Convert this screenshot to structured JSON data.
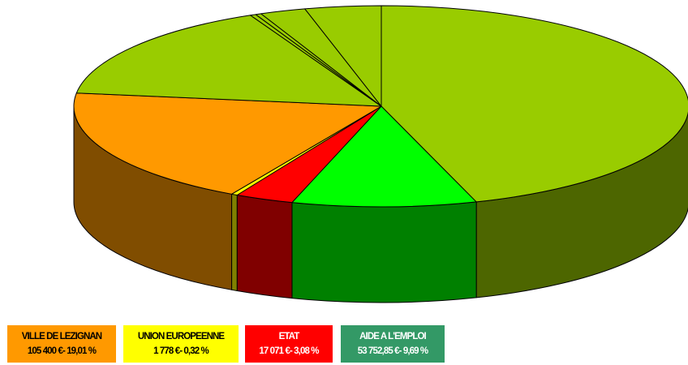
{
  "chart_data": {
    "type": "pie",
    "style": "3d",
    "slices": [
      {
        "label": "",
        "value": 45.0,
        "color": "#99CC00",
        "side_color": "#4D6600"
      },
      {
        "label": "AIDE A L'EMPLOI",
        "amount": "53 752,85 €",
        "value": 9.69,
        "color": "#00FF00",
        "side_color": "#008000"
      },
      {
        "label": "ETAT",
        "amount": "17 071 €",
        "value": 3.08,
        "color": "#FF0000",
        "side_color": "#800000"
      },
      {
        "label": "UNION EUROPEENNE",
        "amount": "1 778 €",
        "value": 0.32,
        "color": "#FFFF00",
        "side_color": "#808000"
      },
      {
        "label": "VILLE DE LEZIGNAN",
        "amount": "105 400 €",
        "value": 19.01,
        "color": "#FF9900",
        "side_color": "#804D00"
      },
      {
        "label": "",
        "value": 15.9,
        "color": "#99CC00",
        "side_color": "#4D6600"
      },
      {
        "label": "",
        "value": 0.3,
        "color": "#99CC00",
        "side_color": "#4D6600"
      },
      {
        "label": "",
        "value": 0.3,
        "color": "#99CC00",
        "side_color": "#4D6600"
      },
      {
        "label": "",
        "value": 2.4,
        "color": "#99CC00",
        "side_color": "#4D6600"
      },
      {
        "label": "",
        "value": 4.0,
        "color": "#99CC00",
        "side_color": "#4D6600"
      }
    ],
    "legend": [
      {
        "line1": "VILLE DE LEZIGNAN",
        "line2": "105 400 €- 19,01 %",
        "bg": "#FF9900",
        "fg": "#000000"
      },
      {
        "line1": "UNION EUROPEENNE",
        "line2": "1 778 €- 0,32 %",
        "bg": "#FFFF00",
        "fg": "#000000"
      },
      {
        "line1": "ETAT",
        "line2": "17 071 €- 3,08 %",
        "bg": "#FF0000",
        "fg": "#FFFFFF"
      },
      {
        "line1": "AIDE A L'EMPLOI",
        "line2": "53 752,85 €- 9,69 %",
        "bg": "#339966",
        "fg": "#FFFFFF"
      }
    ]
  }
}
